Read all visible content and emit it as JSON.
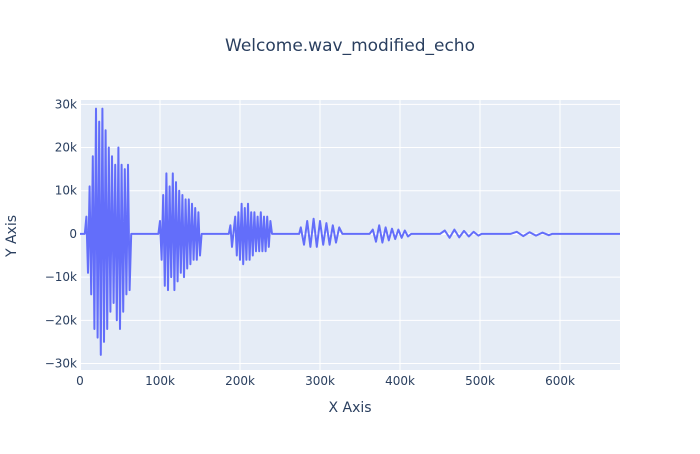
{
  "chart_data": {
    "type": "line",
    "title": "Welcome.wav_modified_echo",
    "xlabel": "X Axis",
    "ylabel": "Y Axis",
    "xlim": [
      0,
      675000
    ],
    "ylim": [
      -31500,
      31000
    ],
    "x_ticks": [
      {
        "value": 0,
        "label": "0"
      },
      {
        "value": 100000,
        "label": "100k"
      },
      {
        "value": 200000,
        "label": "200k"
      },
      {
        "value": 300000,
        "label": "300k"
      },
      {
        "value": 400000,
        "label": "400k"
      },
      {
        "value": 500000,
        "label": "500k"
      },
      {
        "value": 600000,
        "label": "600k"
      }
    ],
    "y_ticks": [
      {
        "value": 30000,
        "label": "30k"
      },
      {
        "value": 20000,
        "label": "20k"
      },
      {
        "value": 10000,
        "label": "10k"
      },
      {
        "value": 0,
        "label": "0"
      },
      {
        "value": -10000,
        "label": "−10k"
      },
      {
        "value": -20000,
        "label": "−20k"
      },
      {
        "value": -30000,
        "label": "−30k"
      }
    ],
    "grid": true,
    "series": [
      {
        "color": "#636efa",
        "x": [
          0,
          6000,
          8000,
          10000,
          12000,
          14000,
          16000,
          18000,
          20000,
          22000,
          24000,
          26000,
          28000,
          30000,
          32000,
          34000,
          36000,
          38000,
          40000,
          42000,
          44000,
          46000,
          48000,
          50000,
          52000,
          54000,
          56000,
          58000,
          60000,
          62000,
          64000,
          98000,
          100000,
          102000,
          104000,
          106000,
          108000,
          110000,
          112000,
          114000,
          116000,
          118000,
          120000,
          122000,
          124000,
          126000,
          128000,
          130000,
          132000,
          134000,
          136000,
          138000,
          140000,
          142000,
          144000,
          146000,
          148000,
          150000,
          152000,
          186000,
          188000,
          190000,
          194000,
          196000,
          198000,
          200000,
          202000,
          204000,
          206000,
          208000,
          210000,
          212000,
          214000,
          216000,
          218000,
          220000,
          222000,
          224000,
          226000,
          228000,
          230000,
          232000,
          234000,
          236000,
          238000,
          240000,
          274000,
          276000,
          280000,
          284000,
          288000,
          292000,
          296000,
          300000,
          304000,
          308000,
          312000,
          316000,
          320000,
          324000,
          328000,
          362000,
          366000,
          370000,
          374000,
          378000,
          382000,
          386000,
          390000,
          394000,
          398000,
          402000,
          406000,
          410000,
          414000,
          450000,
          456000,
          462000,
          468000,
          474000,
          480000,
          486000,
          492000,
          498000,
          502000,
          538000,
          546000,
          554000,
          562000,
          570000,
          578000,
          586000,
          590000,
          675000
        ],
        "y": [
          0,
          0,
          4000,
          -9000,
          11000,
          -14000,
          18000,
          -22000,
          29000,
          -24000,
          26000,
          -28000,
          29000,
          -25000,
          24000,
          -22000,
          20000,
          -18000,
          18000,
          -16000,
          16000,
          -20000,
          20000,
          -22000,
          16000,
          -18000,
          15000,
          -14000,
          16000,
          -13000,
          0,
          0,
          3000,
          -6000,
          9000,
          -12000,
          14000,
          -13000,
          11000,
          -10000,
          14000,
          -13000,
          12000,
          -11000,
          10000,
          -9000,
          9000,
          -10000,
          8000,
          -8000,
          8000,
          -7000,
          7000,
          -6000,
          6000,
          -6000,
          5000,
          -5000,
          0,
          0,
          2000,
          -3000,
          4000,
          -5000,
          5000,
          -6000,
          7000,
          -7000,
          6000,
          -6000,
          7000,
          -6000,
          5000,
          -5000,
          5000,
          -4000,
          4000,
          -4000,
          5000,
          -4000,
          4000,
          -4000,
          4000,
          -3000,
          3000,
          0,
          0,
          1500,
          -2500,
          3000,
          -3000,
          3500,
          -3000,
          3000,
          -2500,
          2500,
          -2500,
          2000,
          -2000,
          1500,
          0,
          0,
          1000,
          -1800,
          2000,
          -2000,
          1500,
          -1500,
          1200,
          -1200,
          1000,
          -900,
          800,
          -600,
          0,
          0,
          800,
          -900,
          1000,
          -800,
          700,
          -600,
          500,
          -400,
          0,
          0,
          500,
          -500,
          400,
          -400,
          300,
          -300,
          0,
          0
        ]
      }
    ]
  }
}
